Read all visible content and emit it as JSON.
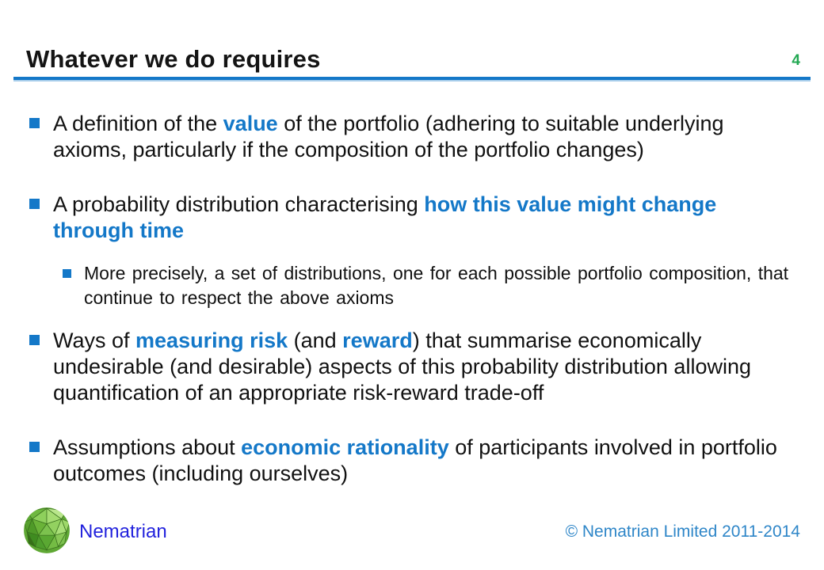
{
  "colors": {
    "accent": "#1478C8",
    "page_number_green": "#22A852",
    "brand_blue": "#2222DD",
    "copyright_blue": "#2E86C8",
    "text": "#111111"
  },
  "header": {
    "title": "Whatever we do requires",
    "page_number": "4"
  },
  "bullets": [
    {
      "level": 1,
      "segments": [
        {
          "text": "A definition of the ",
          "style": "normal"
        },
        {
          "text": "value",
          "style": "accent"
        },
        {
          "text": " of the portfolio (adhering to suitable underlying axioms, particularly if the composition of the portfolio changes)",
          "style": "normal"
        }
      ]
    },
    {
      "level": 1,
      "segments": [
        {
          "text": "A probability distribution characterising ",
          "style": "normal"
        },
        {
          "text": "how this value might change through time",
          "style": "accent"
        }
      ]
    },
    {
      "level": 2,
      "segments": [
        {
          "text": "More precisely, a set of distributions, one for each possible portfolio composition, that continue to respect the above axioms",
          "style": "normal"
        }
      ]
    },
    {
      "level": 1,
      "segments": [
        {
          "text": "Ways of ",
          "style": "normal"
        },
        {
          "text": "measuring risk",
          "style": "accent"
        },
        {
          "text": " (and ",
          "style": "normal"
        },
        {
          "text": "reward",
          "style": "accent"
        },
        {
          "text": ") that summarise economically undesirable (and desirable) aspects of this probability distribution allowing quantification of an appropriate risk-reward trade-off",
          "style": "normal"
        }
      ]
    },
    {
      "level": 1,
      "segments": [
        {
          "text": "Assumptions about ",
          "style": "normal"
        },
        {
          "text": "economic rationality",
          "style": "accent"
        },
        {
          "text": " of participants involved in portfolio outcomes (including ourselves)",
          "style": "normal"
        }
      ]
    }
  ],
  "footer": {
    "brand": "Nematrian",
    "copyright": "© Nematrian Limited 2011-2014"
  }
}
